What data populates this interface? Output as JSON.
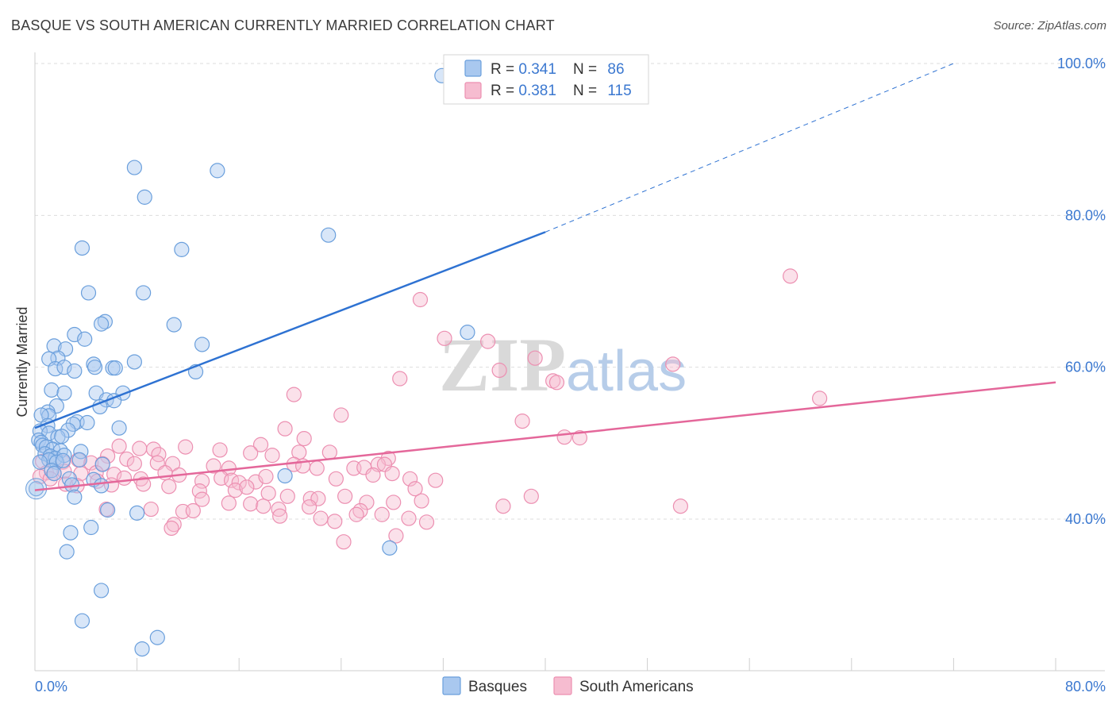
{
  "title": "BASQUE VS SOUTH AMERICAN CURRENTLY MARRIED CORRELATION CHART",
  "source": "Source: ZipAtlas.com",
  "watermark": {
    "zip": "ZIP",
    "atlas": "atlas"
  },
  "colors": {
    "basques_fill": "#a9c8ef",
    "basques_stroke": "#6a9fdc",
    "basques_line": "#2e72d2",
    "south_fill": "#f6bcd0",
    "south_stroke": "#ec8fb1",
    "south_line": "#e4679a",
    "tick_text": "#3b78d0",
    "grid": "#dddddd"
  },
  "legend": {
    "rows": [
      {
        "r_label": "R = ",
        "r_value": "0.341",
        "n_label": "N = ",
        "n_value": "86"
      },
      {
        "r_label": "R = ",
        "r_value": "0.381",
        "n_label": "N = ",
        "n_value": "115"
      }
    ]
  },
  "bottom_legend": [
    "Basques",
    "South Americans"
  ],
  "chart_data": {
    "type": "scatter",
    "title": "BASQUE VS SOUTH AMERICAN CURRENTLY MARRIED CORRELATION CHART",
    "xlabel": "",
    "ylabel": "Currently Married",
    "xlim": [
      0,
      80
    ],
    "ylim": [
      20,
      102
    ],
    "x_tick_labels": [
      "0.0%",
      "80.0%"
    ],
    "y_ticks": [
      40,
      60,
      80,
      100
    ],
    "y_tick_labels": [
      "40.0%",
      "60.0%",
      "80.0%",
      "100.0%"
    ],
    "x_minor_ticks": [
      0,
      8,
      16,
      24,
      32,
      40,
      48,
      56,
      64,
      72,
      80
    ],
    "grid": true,
    "legend_position": "top-center",
    "series": [
      {
        "name": "Basques",
        "R": 0.341,
        "N": 86,
        "trend": {
          "x0": 0,
          "y0": 52.0,
          "x1": 40,
          "y1": 77.8,
          "dashed_to_x": 72,
          "dashed_to_y": 100
        },
        "points": [
          [
            31.9,
            98.4
          ],
          [
            7.8,
            86.3
          ],
          [
            14.3,
            85.9
          ],
          [
            8.6,
            82.4
          ],
          [
            23.0,
            77.4
          ],
          [
            3.7,
            75.7
          ],
          [
            11.5,
            75.5
          ],
          [
            4.2,
            69.8
          ],
          [
            8.5,
            69.8
          ],
          [
            5.5,
            66.0
          ],
          [
            5.2,
            65.7
          ],
          [
            10.9,
            65.6
          ],
          [
            3.1,
            64.3
          ],
          [
            3.9,
            63.7
          ],
          [
            13.1,
            63.0
          ],
          [
            33.9,
            64.6
          ],
          [
            1.5,
            62.8
          ],
          [
            2.4,
            62.4
          ],
          [
            1.8,
            61.2
          ],
          [
            1.1,
            61.1
          ],
          [
            7.8,
            60.7
          ],
          [
            4.6,
            60.4
          ],
          [
            4.7,
            60.0
          ],
          [
            6.1,
            59.9
          ],
          [
            6.3,
            59.9
          ],
          [
            1.6,
            59.8
          ],
          [
            2.3,
            60.0
          ],
          [
            3.1,
            59.5
          ],
          [
            12.6,
            59.4
          ],
          [
            1.3,
            57.0
          ],
          [
            2.3,
            56.6
          ],
          [
            4.8,
            56.6
          ],
          [
            6.9,
            56.6
          ],
          [
            5.6,
            55.7
          ],
          [
            6.2,
            55.6
          ],
          [
            1.7,
            54.9
          ],
          [
            5.1,
            54.8
          ],
          [
            1.0,
            54.1
          ],
          [
            1.1,
            53.6
          ],
          [
            0.5,
            53.7
          ],
          [
            3.3,
            52.8
          ],
          [
            4.1,
            52.7
          ],
          [
            3.0,
            52.5
          ],
          [
            1.0,
            52.3
          ],
          [
            2.6,
            51.7
          ],
          [
            6.6,
            52.0
          ],
          [
            0.4,
            51.6
          ],
          [
            1.1,
            51.3
          ],
          [
            1.8,
            50.8
          ],
          [
            2.1,
            50.9
          ],
          [
            0.3,
            50.4
          ],
          [
            0.5,
            50.1
          ],
          [
            0.6,
            49.7
          ],
          [
            0.9,
            49.5
          ],
          [
            1.4,
            49.2
          ],
          [
            2.0,
            49.0
          ],
          [
            3.6,
            48.9
          ],
          [
            0.8,
            48.6
          ],
          [
            1.2,
            48.3
          ],
          [
            1.6,
            48.0
          ],
          [
            2.3,
            48.4
          ],
          [
            1.1,
            47.8
          ],
          [
            1.7,
            47.5
          ],
          [
            2.2,
            47.7
          ],
          [
            3.5,
            47.8
          ],
          [
            0.4,
            47.5
          ],
          [
            1.3,
            46.4
          ],
          [
            1.5,
            46.0
          ],
          [
            2.7,
            45.3
          ],
          [
            5.3,
            47.2
          ],
          [
            4.6,
            45.2
          ],
          [
            2.9,
            44.5
          ],
          [
            5.2,
            44.4
          ],
          [
            19.6,
            45.7
          ],
          [
            3.1,
            42.9
          ],
          [
            5.7,
            41.2
          ],
          [
            8.0,
            40.8
          ],
          [
            4.4,
            38.9
          ],
          [
            2.8,
            38.2
          ],
          [
            2.5,
            35.7
          ],
          [
            27.8,
            36.2
          ],
          [
            5.2,
            30.6
          ],
          [
            3.7,
            26.6
          ],
          [
            9.6,
            24.4
          ],
          [
            8.4,
            22.9
          ],
          [
            0.1,
            44.0
          ]
        ]
      },
      {
        "name": "South Americans",
        "R": 0.381,
        "N": 115,
        "trend": {
          "x0": 0,
          "y0": 43.8,
          "x1": 80,
          "y1": 58.0
        },
        "points": [
          [
            59.2,
            72.0
          ],
          [
            30.2,
            68.9
          ],
          [
            35.5,
            63.4
          ],
          [
            32.1,
            63.8
          ],
          [
            39.2,
            61.2
          ],
          [
            50.0,
            60.4
          ],
          [
            36.4,
            59.6
          ],
          [
            28.6,
            58.5
          ],
          [
            40.6,
            58.2
          ],
          [
            40.9,
            58.0
          ],
          [
            20.3,
            56.4
          ],
          [
            61.5,
            55.9
          ],
          [
            24.0,
            53.7
          ],
          [
            38.2,
            52.9
          ],
          [
            19.6,
            51.9
          ],
          [
            41.5,
            50.8
          ],
          [
            42.7,
            50.7
          ],
          [
            21.1,
            50.6
          ],
          [
            17.7,
            49.8
          ],
          [
            6.6,
            49.6
          ],
          [
            11.8,
            49.5
          ],
          [
            8.2,
            49.3
          ],
          [
            9.3,
            49.2
          ],
          [
            14.5,
            49.1
          ],
          [
            16.9,
            48.7
          ],
          [
            5.7,
            48.3
          ],
          [
            9.7,
            48.5
          ],
          [
            20.7,
            48.8
          ],
          [
            18.6,
            48.4
          ],
          [
            23.1,
            48.8
          ],
          [
            27.7,
            48.0
          ],
          [
            7.2,
            47.9
          ],
          [
            3.4,
            47.8
          ],
          [
            0.6,
            47.6
          ],
          [
            2.2,
            47.5
          ],
          [
            4.4,
            47.4
          ],
          [
            5.3,
            47.3
          ],
          [
            7.8,
            47.3
          ],
          [
            9.6,
            47.4
          ],
          [
            10.8,
            47.3
          ],
          [
            14.0,
            47.0
          ],
          [
            15.2,
            46.7
          ],
          [
            20.3,
            47.2
          ],
          [
            21.0,
            47.0
          ],
          [
            22.1,
            46.7
          ],
          [
            25.0,
            46.7
          ],
          [
            25.8,
            46.8
          ],
          [
            26.9,
            47.2
          ],
          [
            27.4,
            47.2
          ],
          [
            0.9,
            46.1
          ],
          [
            1.5,
            46.0
          ],
          [
            2.3,
            46.3
          ],
          [
            3.6,
            46.0
          ],
          [
            4.8,
            46.1
          ],
          [
            6.2,
            45.9
          ],
          [
            8.3,
            45.3
          ],
          [
            10.2,
            46.1
          ],
          [
            11.3,
            45.8
          ],
          [
            13.1,
            45.0
          ],
          [
            14.6,
            45.4
          ],
          [
            15.4,
            45.1
          ],
          [
            16.0,
            44.8
          ],
          [
            17.3,
            44.9
          ],
          [
            18.1,
            45.6
          ],
          [
            23.6,
            45.3
          ],
          [
            26.5,
            45.8
          ],
          [
            28.0,
            46.0
          ],
          [
            29.4,
            45.3
          ],
          [
            31.4,
            45.1
          ],
          [
            0.4,
            45.6
          ],
          [
            1.2,
            45.3
          ],
          [
            2.4,
            44.6
          ],
          [
            3.3,
            44.4
          ],
          [
            4.9,
            45.0
          ],
          [
            6.0,
            44.5
          ],
          [
            7.0,
            45.4
          ],
          [
            8.5,
            44.6
          ],
          [
            10.5,
            44.3
          ],
          [
            12.9,
            43.7
          ],
          [
            15.7,
            43.8
          ],
          [
            16.6,
            44.2
          ],
          [
            18.3,
            43.4
          ],
          [
            19.8,
            43.0
          ],
          [
            21.6,
            42.7
          ],
          [
            22.2,
            42.7
          ],
          [
            24.3,
            43.0
          ],
          [
            26.0,
            42.2
          ],
          [
            28.1,
            42.2
          ],
          [
            29.8,
            44.0
          ],
          [
            30.3,
            42.4
          ],
          [
            38.9,
            43.0
          ],
          [
            13.1,
            42.6
          ],
          [
            15.2,
            42.1
          ],
          [
            16.9,
            42.0
          ],
          [
            17.9,
            41.7
          ],
          [
            19.1,
            41.3
          ],
          [
            19.2,
            40.4
          ],
          [
            21.5,
            41.6
          ],
          [
            22.4,
            40.1
          ],
          [
            23.5,
            39.7
          ],
          [
            25.5,
            41.1
          ],
          [
            25.2,
            40.6
          ],
          [
            27.2,
            40.6
          ],
          [
            29.3,
            40.1
          ],
          [
            30.7,
            39.6
          ],
          [
            36.7,
            41.7
          ],
          [
            50.6,
            41.7
          ],
          [
            5.6,
            41.3
          ],
          [
            9.1,
            41.3
          ],
          [
            11.6,
            41.0
          ],
          [
            12.4,
            41.1
          ],
          [
            10.9,
            39.3
          ],
          [
            10.7,
            38.8
          ],
          [
            28.3,
            37.8
          ],
          [
            24.2,
            37.0
          ]
        ]
      }
    ]
  }
}
